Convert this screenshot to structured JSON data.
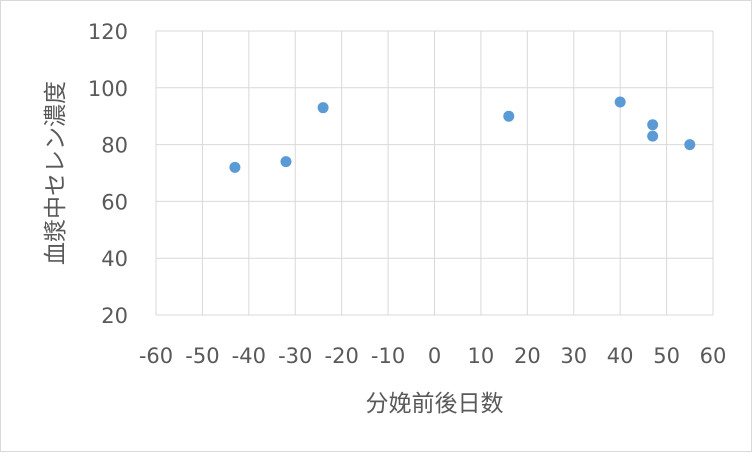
{
  "chart_data": {
    "type": "scatter",
    "title": "",
    "xlabel": "分娩前後日数",
    "ylabel": "血漿中セレン濃度",
    "xlim": [
      -60,
      60
    ],
    "ylim": [
      20,
      120
    ],
    "xticks": [
      -60,
      -50,
      -40,
      -30,
      -20,
      -10,
      0,
      10,
      20,
      30,
      40,
      50,
      60
    ],
    "yticks": [
      20,
      40,
      60,
      80,
      100,
      120
    ],
    "xtick_labels": [
      "-60",
      "-50",
      "-40",
      "-30",
      "-20",
      "-10",
      "0",
      "10",
      "20",
      "30",
      "40",
      "50",
      "60"
    ],
    "ytick_labels": [
      "20",
      "40",
      "60",
      "80",
      "100",
      "120"
    ],
    "grid": true,
    "legend": "none",
    "marker_color": "#5b9bd5",
    "gridline_color": "#d9d9d9",
    "points": [
      {
        "x": -43,
        "y": 72
      },
      {
        "x": -32,
        "y": 74
      },
      {
        "x": -24,
        "y": 93
      },
      {
        "x": 16,
        "y": 90
      },
      {
        "x": 40,
        "y": 95
      },
      {
        "x": 47,
        "y": 87
      },
      {
        "x": 47,
        "y": 83
      },
      {
        "x": 55,
        "y": 80
      }
    ]
  }
}
